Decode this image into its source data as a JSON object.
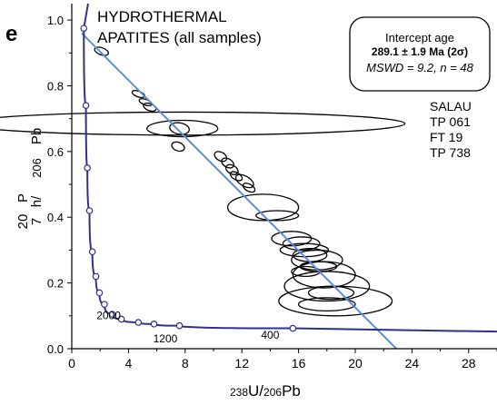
{
  "panel_label": "e",
  "chart_data": {
    "type": "scatter",
    "title_lines": [
      "HYDROTHERMAL",
      "APATITES (all samples)"
    ],
    "xlabel": {
      "base1": "U/",
      "base2": "Pb",
      "sup1": "238",
      "sup2": "206"
    },
    "ylabel_fragments": [
      "Pb",
      "206",
      "h/",
      "7",
      "P",
      "20"
    ],
    "xlim": [
      0,
      30
    ],
    "ylim": [
      0,
      1.05
    ],
    "x_ticks": [
      0,
      4,
      8,
      12,
      16,
      20,
      24,
      28
    ],
    "y_ticks": [
      0.0,
      0.2,
      0.4,
      0.6,
      0.8,
      1.0
    ],
    "x_tick_labels": [
      "0",
      "4",
      "8",
      "12",
      "16",
      "20",
      "24",
      "28"
    ],
    "y_tick_labels": [
      "0.0",
      "0.2",
      "0.4",
      "0.6",
      "0.8",
      "1.0"
    ],
    "info_box": {
      "line1": "Intercept age",
      "line2": "289.1 ± 1.9 Ma (2σ)",
      "line3": "MSWD = 9.2, n = 48"
    },
    "samples": [
      "SALAU",
      "TP 061",
      "FT 19",
      "TP 738"
    ],
    "concordia_age_labels": [
      {
        "label": "2000",
        "x": 2.6,
        "y": 0.09
      },
      {
        "label": "1200",
        "x": 6.6,
        "y": 0.02
      },
      {
        "label": "400",
        "x": 14.0,
        "y": 0.03
      }
    ],
    "concordia_points": [
      {
        "x": 0.85,
        "y": 0.975
      },
      {
        "x": 1.0,
        "y": 0.74
      },
      {
        "x": 1.1,
        "y": 0.55
      },
      {
        "x": 1.25,
        "y": 0.42
      },
      {
        "x": 1.45,
        "y": 0.295
      },
      {
        "x": 1.7,
        "y": 0.22
      },
      {
        "x": 1.95,
        "y": 0.17
      },
      {
        "x": 2.3,
        "y": 0.135
      },
      {
        "x": 2.85,
        "y": 0.105
      },
      {
        "x": 3.5,
        "y": 0.09
      },
      {
        "x": 4.7,
        "y": 0.08
      },
      {
        "x": 5.8,
        "y": 0.075
      },
      {
        "x": 7.6,
        "y": 0.07
      },
      {
        "x": 15.6,
        "y": 0.062
      }
    ],
    "regression_line": {
      "x": [
        0.7,
        22.9
      ],
      "y": [
        0.96,
        0.0
      ]
    },
    "ellipses": [
      {
        "x": 2.1,
        "y": 0.905,
        "rx": 0.25,
        "ry": 0.022,
        "angle": -70
      },
      {
        "x": 4.7,
        "y": 0.775,
        "rx": 0.2,
        "ry": 0.02,
        "angle": -70
      },
      {
        "x": 5.2,
        "y": 0.75,
        "rx": 0.2,
        "ry": 0.02,
        "angle": -70
      },
      {
        "x": 5.5,
        "y": 0.735,
        "rx": 0.25,
        "ry": 0.02,
        "angle": -70
      },
      {
        "x": 7.6,
        "y": 0.67,
        "rx": 0.4,
        "ry": 0.03,
        "angle": -80
      },
      {
        "x": 7.5,
        "y": 0.615,
        "rx": 0.3,
        "ry": 0.02,
        "angle": -70
      },
      {
        "x": 8.0,
        "y": 0.685,
        "rx": 15.5,
        "ry": 0.035,
        "angle": 0
      },
      {
        "x": 7.8,
        "y": 0.67,
        "rx": 2.5,
        "ry": 0.025,
        "angle": 0
      },
      {
        "x": 10.5,
        "y": 0.585,
        "rx": 0.3,
        "ry": 0.02,
        "angle": -60
      },
      {
        "x": 11.0,
        "y": 0.565,
        "rx": 0.3,
        "ry": 0.02,
        "angle": -60
      },
      {
        "x": 11.3,
        "y": 0.545,
        "rx": 0.3,
        "ry": 0.02,
        "angle": -60
      },
      {
        "x": 11.6,
        "y": 0.525,
        "rx": 0.25,
        "ry": 0.02,
        "angle": -60
      },
      {
        "x": 12.2,
        "y": 0.51,
        "rx": 0.35,
        "ry": 0.03,
        "angle": -60
      },
      {
        "x": 12.5,
        "y": 0.49,
        "rx": 0.25,
        "ry": 0.02,
        "angle": -60
      },
      {
        "x": 13.5,
        "y": 0.43,
        "rx": 2.5,
        "ry": 0.04,
        "angle": 0
      },
      {
        "x": 14.5,
        "y": 0.405,
        "rx": 1.5,
        "ry": 0.015,
        "angle": 0
      },
      {
        "x": 15.5,
        "y": 0.335,
        "rx": 1.4,
        "ry": 0.022,
        "angle": 0
      },
      {
        "x": 16.2,
        "y": 0.32,
        "rx": 1.3,
        "ry": 0.02,
        "angle": 0
      },
      {
        "x": 16.4,
        "y": 0.3,
        "rx": 1.7,
        "ry": 0.02,
        "angle": 0
      },
      {
        "x": 16.8,
        "y": 0.285,
        "rx": 1.2,
        "ry": 0.02,
        "angle": 0
      },
      {
        "x": 17.3,
        "y": 0.27,
        "rx": 1.8,
        "ry": 0.03,
        "angle": 0
      },
      {
        "x": 17.4,
        "y": 0.25,
        "rx": 1.3,
        "ry": 0.015,
        "angle": 0
      },
      {
        "x": 16.5,
        "y": 0.235,
        "rx": 1.0,
        "ry": 0.015,
        "angle": 0
      },
      {
        "x": 17.8,
        "y": 0.225,
        "rx": 2.2,
        "ry": 0.04,
        "angle": 0
      },
      {
        "x": 18.0,
        "y": 0.19,
        "rx": 3.0,
        "ry": 0.045,
        "angle": 0
      },
      {
        "x": 18.3,
        "y": 0.17,
        "rx": 1.6,
        "ry": 0.02,
        "angle": 0
      },
      {
        "x": 18.6,
        "y": 0.145,
        "rx": 4.0,
        "ry": 0.045,
        "angle": 0
      },
      {
        "x": 18.0,
        "y": 0.135,
        "rx": 2.0,
        "ry": 0.02,
        "angle": 0
      }
    ],
    "colors": {
      "concordia": "#2e3092",
      "regression": "#5b8fd6",
      "ellipse": "#000000",
      "axis": "#000000"
    }
  }
}
